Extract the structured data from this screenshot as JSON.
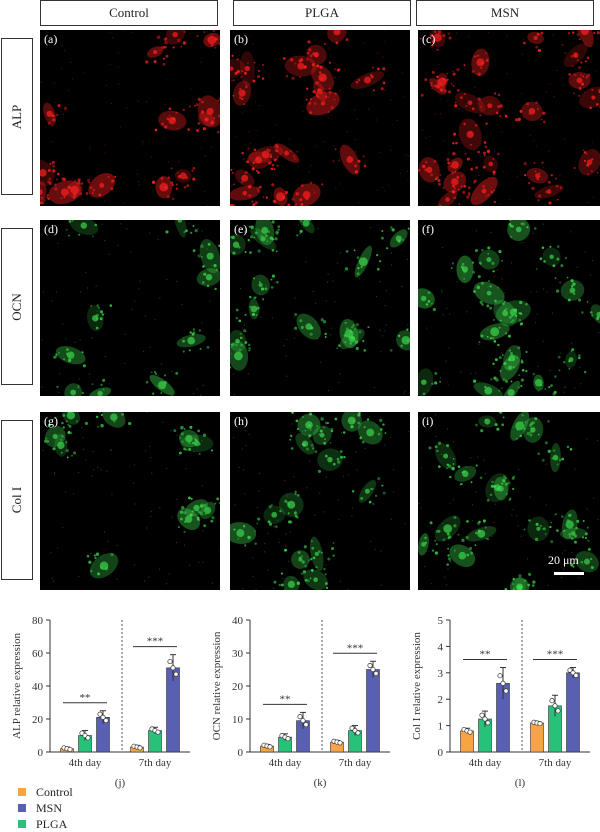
{
  "columns": [
    "Control",
    "PLGA",
    "MSN"
  ],
  "rows": [
    {
      "label": "ALP",
      "color": "#ff2020"
    },
    {
      "label": "OCN",
      "color": "#3cd64c"
    },
    {
      "label": "Col I",
      "color": "#3cd64c"
    }
  ],
  "panel_labels": [
    "(a)",
    "(b)",
    "(c)",
    "(d)",
    "(e)",
    "(f)",
    "(g)",
    "(h)",
    "(i)"
  ],
  "scale_bar": "20 μm",
  "legend": [
    {
      "label": "Control",
      "color": "#f7a443"
    },
    {
      "label": "MSN",
      "color": "#5960b3"
    },
    {
      "label": "PLGA",
      "color": "#28c17a"
    }
  ],
  "chart_data": [
    {
      "type": "bar",
      "panel": "(j)",
      "ylabel": "ALP relative expression",
      "ylim": [
        0,
        80
      ],
      "yticks": [
        0,
        20,
        40,
        60,
        80
      ],
      "categories": [
        "4th day",
        "7th day"
      ],
      "series": [
        {
          "name": "Control",
          "values": [
            2,
            3
          ]
        },
        {
          "name": "PLGA",
          "values": [
            10,
            13
          ]
        },
        {
          "name": "MSN",
          "values": [
            21,
            51
          ]
        }
      ],
      "errors": {
        "Control": [
          1,
          1
        ],
        "PLGA": [
          3,
          2
        ],
        "MSN": [
          4,
          8
        ]
      },
      "significance": [
        "**",
        "***"
      ]
    },
    {
      "type": "bar",
      "panel": "(k)",
      "ylabel": "OCN relative expression",
      "ylim": [
        0,
        40
      ],
      "yticks": [
        0,
        10,
        20,
        30,
        40
      ],
      "categories": [
        "4th day",
        "7th day"
      ],
      "series": [
        {
          "name": "Control",
          "values": [
            1.8,
            3
          ]
        },
        {
          "name": "PLGA",
          "values": [
            4.5,
            6.5
          ]
        },
        {
          "name": "MSN",
          "values": [
            9.5,
            25
          ]
        }
      ],
      "errors": {
        "Control": [
          0.5,
          0.5
        ],
        "PLGA": [
          1,
          1.5
        ],
        "MSN": [
          2.5,
          2.5
        ]
      },
      "significance": [
        "**",
        "***"
      ]
    },
    {
      "type": "bar",
      "panel": "(l)",
      "ylabel": "Col I relative expression",
      "ylim": [
        0,
        5
      ],
      "yticks": [
        0,
        1,
        2,
        3,
        4,
        5
      ],
      "categories": [
        "4th day",
        "7th day"
      ],
      "series": [
        {
          "name": "Control",
          "values": [
            0.8,
            1.1
          ]
        },
        {
          "name": "PLGA",
          "values": [
            1.25,
            1.75
          ]
        },
        {
          "name": "MSN",
          "values": [
            2.6,
            3.0
          ]
        }
      ],
      "errors": {
        "Control": [
          0.1,
          0.05
        ],
        "PLGA": [
          0.3,
          0.4
        ],
        "MSN": [
          0.6,
          0.2
        ]
      },
      "significance": [
        "**",
        "***"
      ]
    }
  ]
}
